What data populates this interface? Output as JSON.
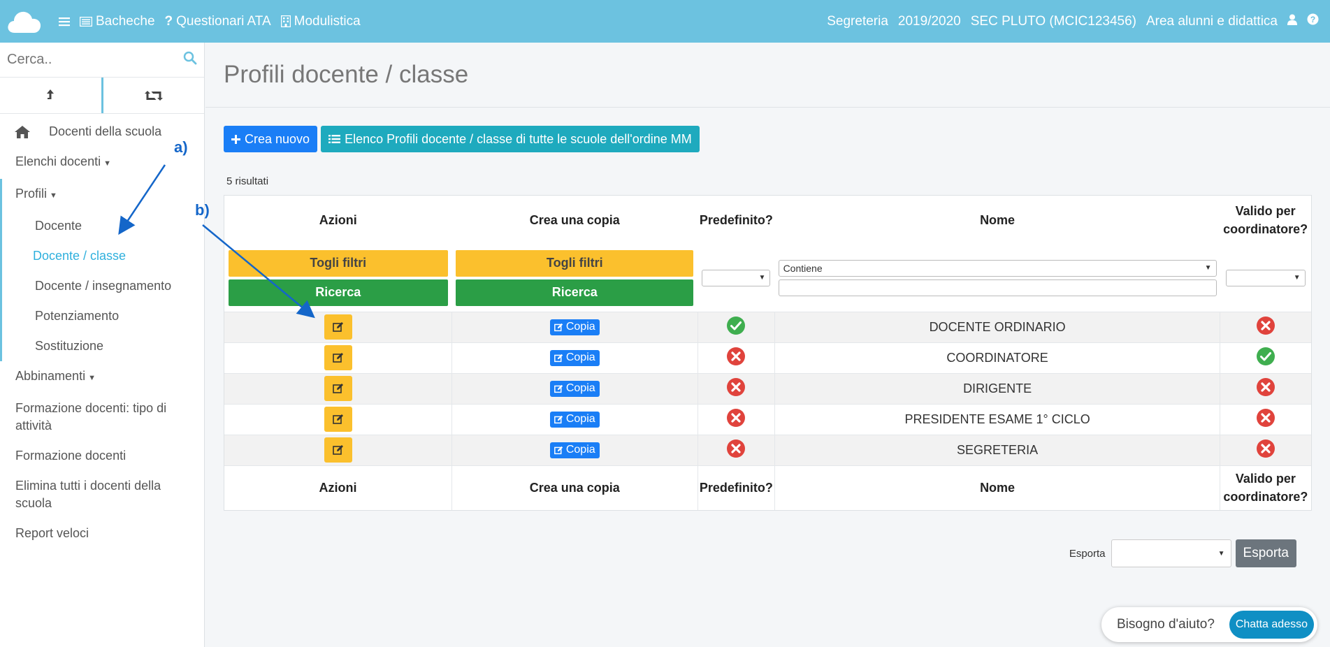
{
  "topbar": {
    "nav": [
      {
        "label": "Bacheche",
        "icon": "list-icon"
      },
      {
        "label": "Questionari ATA",
        "icon": "question-icon"
      },
      {
        "label": "Modulistica",
        "icon": "building-icon"
      }
    ],
    "role": "Segreteria",
    "year": "2019/2020",
    "school": "SEC PLUTO (MCIC123456)",
    "area": "Area alunni e didattica"
  },
  "sidebar": {
    "search_placeholder": "Cerca..",
    "menu": {
      "home": "Docenti della scuola",
      "elenchi": "Elenchi docenti",
      "profili": "Profili",
      "docente": "Docente",
      "docente_classe": "Docente / classe",
      "docente_insegnamento": "Docente / insegnamento",
      "potenziamento": "Potenziamento",
      "sostituzione": "Sostituzione",
      "abbinamenti": "Abbinamenti",
      "formazione_tipo": "Formazione docenti: tipo di attività",
      "formazione": "Formazione docenti",
      "elimina": "Elimina tutti i docenti della scuola",
      "report": "Report veloci"
    }
  },
  "main": {
    "title": "Profili docente / classe",
    "create_label": "Crea nuovo",
    "list_label": "Elenco Profili docente / classe di tutte le scuole dell'ordine MM",
    "results": "5 risultati",
    "columns": {
      "azioni": "Azioni",
      "copia": "Crea una copia",
      "predefinito": "Predefinito?",
      "nome": "Nome",
      "valido": "Valido per coordinatore?"
    },
    "filters": {
      "togli": "Togli filtri",
      "ricerca": "Ricerca",
      "contiene": "Contiene"
    },
    "copy_label": "Copia",
    "rows": [
      {
        "nome": "DOCENTE ORDINARIO",
        "predefinito": true,
        "valido": false
      },
      {
        "nome": "COORDINATORE",
        "predefinito": false,
        "valido": true
      },
      {
        "nome": "DIRIGENTE",
        "predefinito": false,
        "valido": false
      },
      {
        "nome": "PRESIDENTE ESAME 1° CICLO",
        "predefinito": false,
        "valido": false
      },
      {
        "nome": "SEGRETERIA",
        "predefinito": false,
        "valido": false
      }
    ],
    "export_label": "Esporta",
    "export_button": "Esporta"
  },
  "chat": {
    "prompt": "Bisogno d'aiuto?",
    "button": "Chatta adesso"
  },
  "annotations": {
    "a": "a)",
    "b": "b)"
  },
  "colors": {
    "topbar": "#6cc2e0",
    "primary": "#1a7ef6",
    "teal": "#1eaabe",
    "yellow": "#fbc02d",
    "green": "#2b9e46",
    "danger": "#e0433c",
    "ok": "#3fae4f"
  }
}
